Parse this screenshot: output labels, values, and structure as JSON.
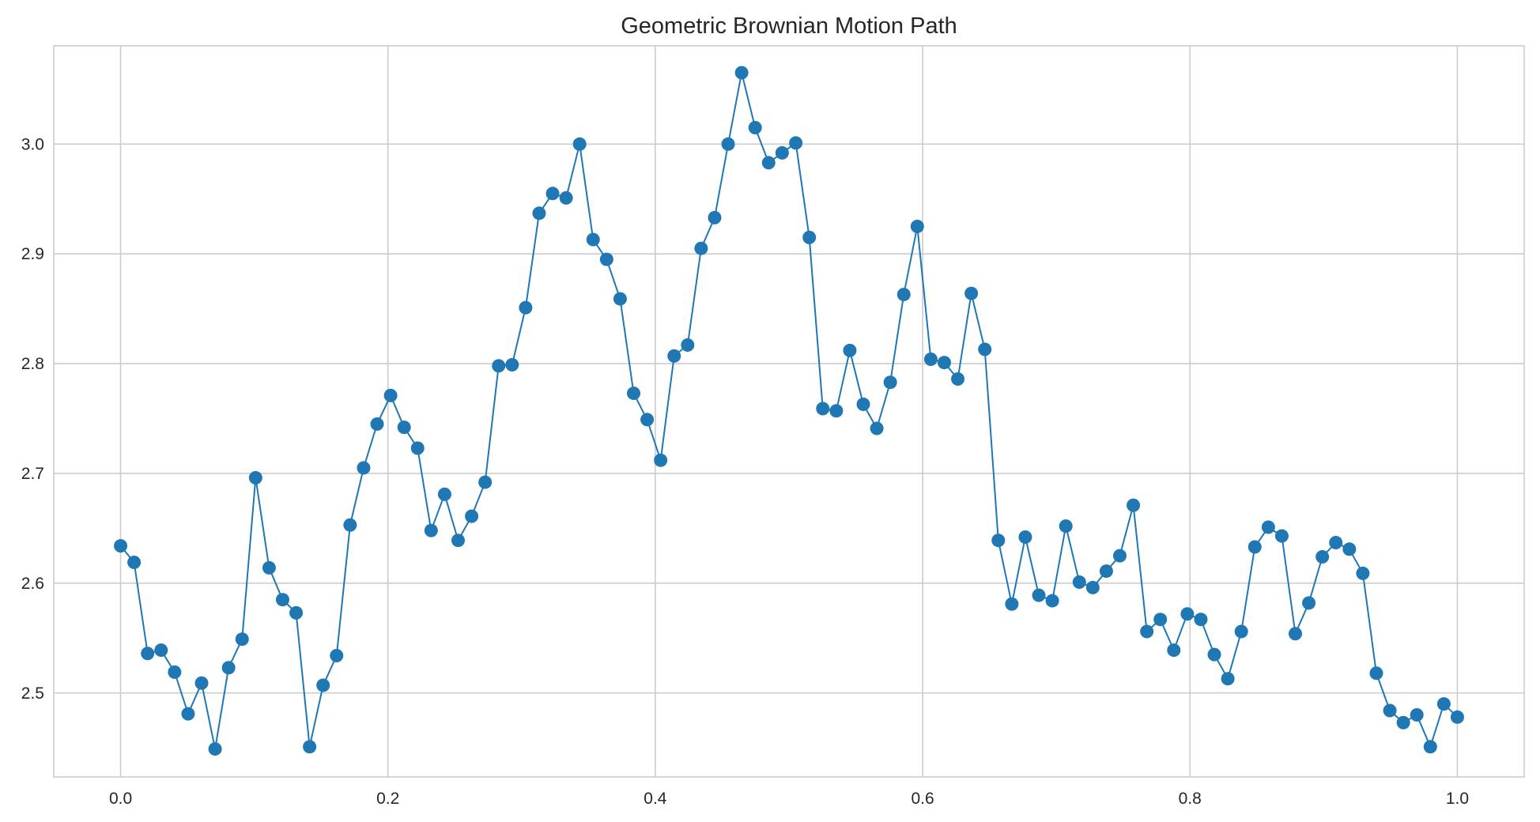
{
  "chart_data": {
    "type": "line",
    "title": "Geometric Brownian Motion Path",
    "xlabel": "",
    "ylabel": "",
    "xlim": [
      -0.05,
      1.05
    ],
    "ylim": [
      2.4235,
      3.0895
    ],
    "x_ticks": [
      "0.0",
      "0.2",
      "0.4",
      "0.6",
      "0.8",
      "1.0"
    ],
    "y_ticks": [
      "2.5",
      "2.6",
      "2.7",
      "2.8",
      "2.9",
      "3.0"
    ],
    "grid": true,
    "marker": "circle",
    "line_color": "#1f77b4",
    "series": [
      {
        "x": [
          0.0,
          0.0101,
          0.0202,
          0.0303,
          0.0404,
          0.0505,
          0.0606,
          0.0707,
          0.0808,
          0.0909,
          0.101,
          0.1111,
          0.1212,
          0.1313,
          0.1414,
          0.1515,
          0.1616,
          0.1717,
          0.1818,
          0.1919,
          0.202,
          0.2121,
          0.2222,
          0.2323,
          0.2424,
          0.2525,
          0.2626,
          0.2727,
          0.2828,
          0.2929,
          0.303,
          0.3131,
          0.3232,
          0.3333,
          0.3434,
          0.3535,
          0.3636,
          0.3737,
          0.3838,
          0.3939,
          0.404,
          0.4141,
          0.4242,
          0.4343,
          0.4444,
          0.4545,
          0.4646,
          0.4747,
          0.4848,
          0.4949,
          0.5051,
          0.5152,
          0.5253,
          0.5354,
          0.5455,
          0.5556,
          0.5657,
          0.5758,
          0.5859,
          0.596,
          0.6061,
          0.6162,
          0.6263,
          0.6364,
          0.6465,
          0.6566,
          0.6667,
          0.6768,
          0.6869,
          0.697,
          0.7071,
          0.7172,
          0.7273,
          0.7374,
          0.7475,
          0.7576,
          0.7677,
          0.7778,
          0.7879,
          0.798,
          0.8081,
          0.8182,
          0.8283,
          0.8384,
          0.8485,
          0.8586,
          0.8687,
          0.8788,
          0.8889,
          0.899,
          0.9091,
          0.9192,
          0.9293,
          0.9394,
          0.9495,
          0.9596,
          0.9697,
          0.9798,
          0.9899,
          1.0
        ],
        "values": [
          2.634,
          2.619,
          2.536,
          2.539,
          2.519,
          2.481,
          2.509,
          2.449,
          2.523,
          2.549,
          2.696,
          2.614,
          2.585,
          2.573,
          2.451,
          2.507,
          2.534,
          2.653,
          2.705,
          2.745,
          2.771,
          2.742,
          2.723,
          2.648,
          2.681,
          2.639,
          2.661,
          2.692,
          2.798,
          2.799,
          2.851,
          2.937,
          2.955,
          2.951,
          3.0,
          2.913,
          2.895,
          2.859,
          2.773,
          2.749,
          2.712,
          2.807,
          2.817,
          2.905,
          2.933,
          3.0,
          3.065,
          3.015,
          2.983,
          2.992,
          3.001,
          2.915,
          2.759,
          2.757,
          2.812,
          2.763,
          2.741,
          2.783,
          2.863,
          2.925,
          2.804,
          2.801,
          2.786,
          2.864,
          2.813,
          2.639,
          2.581,
          2.642,
          2.589,
          2.584,
          2.652,
          2.601,
          2.596,
          2.611,
          2.625,
          2.671,
          2.556,
          2.567,
          2.539,
          2.572,
          2.567,
          2.535,
          2.513,
          2.556,
          2.633,
          2.651,
          2.643,
          2.554,
          2.582,
          2.624,
          2.637,
          2.631,
          2.609,
          2.518,
          2.484,
          2.473,
          2.48,
          2.451,
          2.49,
          2.478
        ]
      }
    ]
  }
}
